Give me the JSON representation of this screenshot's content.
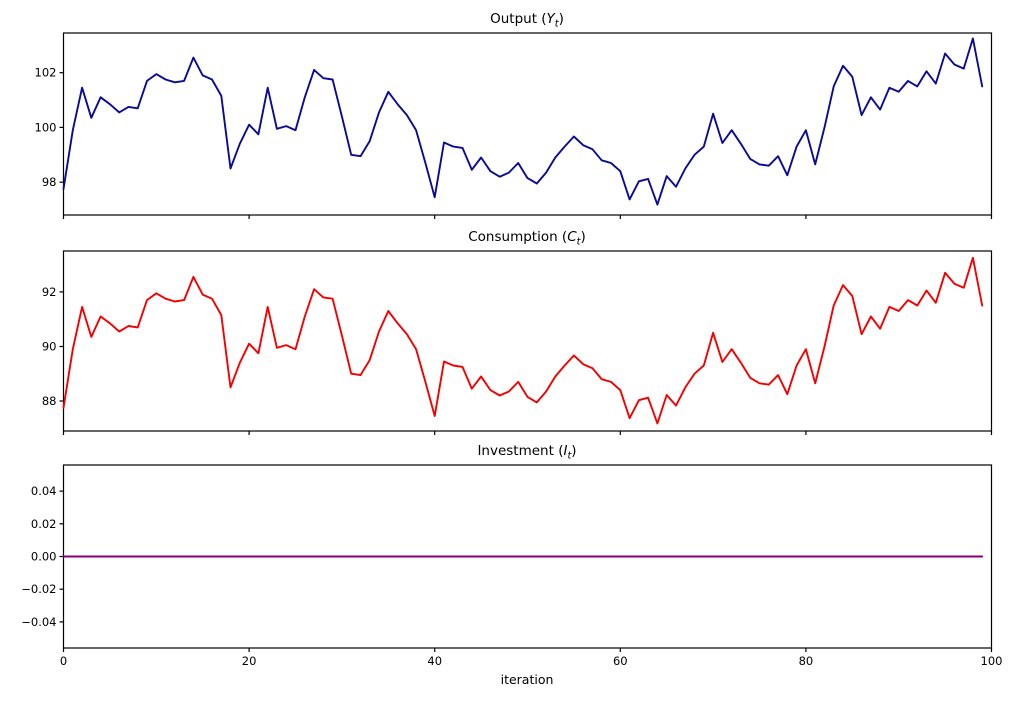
{
  "figure": {
    "background": "#ffffff",
    "xlabel": "iteration"
  },
  "chart_data": [
    {
      "type": "line",
      "title": {
        "prefix": "Output (",
        "symbol": "Y",
        "subscript": "t",
        "suffix": ")"
      },
      "line_color": "#0a0a96",
      "xlim": [
        0,
        100
      ],
      "ylim": [
        96.8,
        103.45
      ],
      "x_start": 0,
      "x_step": 1,
      "x_ticks": [
        0,
        20,
        40,
        60,
        80,
        100
      ],
      "x_tick_labels": null,
      "y_ticks": [
        98,
        100,
        102
      ],
      "y_tick_labels": [
        "98",
        "100",
        "102"
      ],
      "grid": false,
      "values": [
        97.75,
        99.9,
        101.45,
        100.35,
        101.1,
        100.85,
        100.55,
        100.75,
        100.7,
        101.7,
        101.95,
        101.75,
        101.65,
        101.7,
        102.55,
        101.9,
        101.75,
        101.15,
        98.5,
        99.4,
        100.1,
        99.75,
        101.45,
        99.95,
        100.05,
        99.9,
        101.1,
        102.1,
        101.8,
        101.75,
        100.4,
        99.0,
        98.95,
        99.5,
        100.55,
        101.3,
        100.85,
        100.45,
        99.9,
        98.7,
        97.45,
        99.45,
        99.3,
        99.25,
        98.45,
        98.9,
        98.4,
        98.2,
        98.35,
        98.7,
        98.15,
        97.95,
        98.35,
        98.9,
        99.3,
        99.67,
        99.35,
        99.2,
        98.8,
        98.7,
        98.4,
        97.37,
        98.03,
        98.12,
        97.18,
        98.22,
        97.83,
        98.5,
        99.0,
        99.3,
        100.5,
        99.43,
        99.9,
        99.4,
        98.85,
        98.65,
        98.6,
        98.95,
        98.25,
        99.3,
        99.9,
        98.65,
        100.0,
        101.5,
        102.25,
        101.85,
        100.45,
        101.1,
        100.65,
        101.45,
        101.3,
        101.7,
        101.5,
        102.05,
        101.6,
        102.7,
        102.3,
        102.15,
        103.25,
        101.5
      ]
    },
    {
      "type": "line",
      "title": {
        "prefix": "Consumption (",
        "symbol": "C",
        "subscript": "t",
        "suffix": ")"
      },
      "line_color": "#f40000",
      "xlim": [
        0,
        100
      ],
      "ylim": [
        86.9,
        93.5
      ],
      "x_start": 0,
      "x_step": 1,
      "x_ticks": [
        0,
        20,
        40,
        60,
        80,
        100
      ],
      "x_tick_labels": null,
      "y_ticks": [
        88,
        90,
        92
      ],
      "y_tick_labels": [
        "88",
        "90",
        "92"
      ],
      "grid": false,
      "values": [
        87.75,
        89.9,
        91.45,
        90.35,
        91.1,
        90.85,
        90.55,
        90.75,
        90.7,
        91.7,
        91.95,
        91.75,
        91.65,
        91.7,
        92.55,
        91.9,
        91.75,
        91.15,
        88.5,
        89.4,
        90.1,
        89.75,
        91.45,
        89.95,
        90.05,
        89.9,
        91.1,
        92.1,
        91.8,
        91.75,
        90.4,
        89.0,
        88.95,
        89.5,
        90.55,
        91.3,
        90.85,
        90.45,
        89.9,
        88.7,
        87.45,
        89.45,
        89.3,
        89.25,
        88.45,
        88.9,
        88.4,
        88.2,
        88.35,
        88.7,
        88.15,
        87.95,
        88.35,
        88.9,
        89.3,
        89.67,
        89.35,
        89.2,
        88.8,
        88.7,
        88.4,
        87.37,
        88.03,
        88.12,
        87.18,
        88.22,
        87.83,
        88.5,
        89.0,
        89.3,
        90.5,
        89.43,
        89.9,
        89.4,
        88.85,
        88.65,
        88.6,
        88.95,
        88.25,
        89.3,
        89.9,
        88.65,
        90.0,
        91.5,
        92.25,
        91.85,
        90.45,
        91.1,
        90.65,
        91.45,
        91.3,
        91.7,
        91.5,
        92.05,
        91.6,
        92.7,
        92.3,
        92.15,
        93.25,
        91.5
      ]
    },
    {
      "type": "line",
      "title": {
        "prefix": "Investment (",
        "symbol": "I",
        "subscript": "t",
        "suffix": ")"
      },
      "line_color": "#800080",
      "xlim": [
        0,
        100
      ],
      "ylim": [
        -0.056,
        0.056
      ],
      "x_start": 0,
      "x_step": 1,
      "x_ticks": [
        0,
        20,
        40,
        60,
        80,
        100
      ],
      "x_tick_labels": [
        "0",
        "20",
        "40",
        "60",
        "80",
        "100"
      ],
      "y_ticks": [
        0.04,
        0.02,
        0.0,
        -0.02,
        -0.04
      ],
      "y_tick_labels": [
        "0.04",
        "0.02",
        "0.00",
        "−0.02",
        "−0.04"
      ],
      "grid": false,
      "values": [
        0,
        0,
        0,
        0,
        0,
        0,
        0,
        0,
        0,
        0,
        0,
        0,
        0,
        0,
        0,
        0,
        0,
        0,
        0,
        0,
        0,
        0,
        0,
        0,
        0,
        0,
        0,
        0,
        0,
        0,
        0,
        0,
        0,
        0,
        0,
        0,
        0,
        0,
        0,
        0,
        0,
        0,
        0,
        0,
        0,
        0,
        0,
        0,
        0,
        0,
        0,
        0,
        0,
        0,
        0,
        0,
        0,
        0,
        0,
        0,
        0,
        0,
        0,
        0,
        0,
        0,
        0,
        0,
        0,
        0,
        0,
        0,
        0,
        0,
        0,
        0,
        0,
        0,
        0,
        0,
        0,
        0,
        0,
        0,
        0,
        0,
        0,
        0,
        0,
        0,
        0,
        0,
        0,
        0,
        0,
        0,
        0,
        0,
        0,
        0
      ]
    }
  ]
}
